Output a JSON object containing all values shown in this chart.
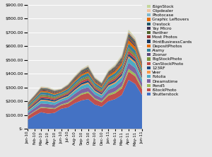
{
  "months": [
    "Jan-10",
    "Feb-10",
    "Mar-10",
    "Apr-10",
    "May-10",
    "Jun-10",
    "Jul-10",
    "Aug-10",
    "Sep-10",
    "Oct-10",
    "Nov-10",
    "Dec-10",
    "Jan-11",
    "Feb-11",
    "Mar-11",
    "Apr-11",
    "May-11",
    "Jun-11"
  ],
  "series": {
    "Shutterstock": [
      65,
      95,
      120,
      110,
      115,
      145,
      155,
      185,
      205,
      215,
      175,
      160,
      200,
      215,
      245,
      355,
      325,
      245
    ],
    "iStockPhoto": [
      25,
      28,
      32,
      38,
      28,
      25,
      28,
      32,
      42,
      45,
      38,
      32,
      40,
      42,
      48,
      60,
      55,
      42
    ],
    "Pond5": [
      4,
      4,
      6,
      6,
      6,
      6,
      8,
      8,
      10,
      10,
      8,
      8,
      12,
      14,
      16,
      20,
      18,
      14
    ],
    "Dreamstime": [
      18,
      22,
      26,
      26,
      24,
      22,
      24,
      28,
      30,
      32,
      27,
      24,
      30,
      32,
      36,
      44,
      42,
      32
    ],
    "Fotolia": [
      14,
      16,
      20,
      20,
      18,
      16,
      18,
      22,
      25,
      26,
      22,
      19,
      24,
      26,
      30,
      36,
      34,
      27
    ],
    "Veer": [
      5,
      6,
      7,
      7,
      6,
      6,
      6,
      7,
      8,
      9,
      7,
      6,
      8,
      9,
      10,
      12,
      11,
      9
    ],
    "123RF": [
      7,
      9,
      11,
      11,
      10,
      9,
      10,
      12,
      13,
      14,
      11,
      10,
      12,
      13,
      15,
      18,
      17,
      13
    ],
    "CanStockPhoto": [
      9,
      11,
      13,
      13,
      12,
      10,
      12,
      14,
      15,
      16,
      13,
      12,
      14,
      16,
      18,
      22,
      20,
      16
    ],
    "BigStockPhoto": [
      7,
      9,
      11,
      11,
      10,
      9,
      10,
      12,
      13,
      14,
      11,
      10,
      12,
      13,
      15,
      18,
      17,
      13
    ],
    "Zoonar": [
      3,
      3,
      4,
      4,
      4,
      3,
      4,
      4,
      5,
      5,
      4,
      4,
      5,
      5,
      6,
      7,
      6,
      5
    ],
    "Alamy": [
      11,
      13,
      16,
      16,
      14,
      12,
      14,
      16,
      18,
      19,
      16,
      14,
      17,
      19,
      22,
      26,
      24,
      19
    ],
    "DepositPhotos": [
      4,
      7,
      9,
      9,
      8,
      7,
      8,
      10,
      12,
      13,
      10,
      9,
      13,
      16,
      20,
      27,
      25,
      19
    ],
    "PrintBusinessCards": [
      3,
      3,
      4,
      4,
      4,
      3,
      4,
      5,
      5,
      6,
      5,
      4,
      5,
      6,
      7,
      9,
      8,
      6
    ],
    "Most Photos": [
      3,
      4,
      5,
      5,
      5,
      4,
      5,
      6,
      6,
      7,
      5,
      5,
      6,
      7,
      8,
      10,
      9,
      7
    ],
    "Panther": [
      3,
      3,
      4,
      4,
      4,
      3,
      4,
      5,
      5,
      6,
      5,
      4,
      5,
      6,
      7,
      9,
      8,
      6
    ],
    "Yay Micro": [
      2,
      2,
      3,
      3,
      3,
      2,
      3,
      3,
      4,
      4,
      3,
      3,
      4,
      5,
      6,
      8,
      7,
      5
    ],
    "Crestock": [
      2,
      3,
      4,
      4,
      3,
      3,
      3,
      4,
      5,
      6,
      4,
      4,
      5,
      6,
      7,
      9,
      8,
      6
    ],
    "Graphic Leftovers": [
      2,
      2,
      3,
      3,
      3,
      2,
      3,
      3,
      4,
      4,
      3,
      3,
      4,
      5,
      6,
      8,
      7,
      5
    ],
    "Photocase": [
      2,
      2,
      3,
      3,
      3,
      2,
      3,
      3,
      4,
      4,
      3,
      3,
      4,
      5,
      6,
      8,
      7,
      5
    ],
    "Clipdealer": [
      1,
      2,
      3,
      3,
      2,
      2,
      2,
      3,
      3,
      4,
      3,
      2,
      3,
      4,
      5,
      7,
      6,
      4
    ],
    "iSignStock": [
      1,
      1,
      2,
      2,
      2,
      1,
      2,
      2,
      2,
      3,
      2,
      2,
      3,
      3,
      4,
      6,
      5,
      4
    ]
  },
  "colors": {
    "Shutterstock": "#4472C4",
    "iStockPhoto": "#C0504D",
    "Pond5": "#9BBB59",
    "Dreamstime": "#8064A2",
    "Fotolia": "#4BACC6",
    "Veer": "#F79646",
    "123RF": "#1F497D",
    "CanStockPhoto": "#BE4B48",
    "BigStockPhoto": "#76923C",
    "Zoonar": "#5F497A",
    "Alamy": "#31849B",
    "DepositPhotos": "#E36C09",
    "PrintBusinessCards": "#17375E",
    "Most Photos": "#953735",
    "Panther": "#4F6228",
    "Yay Micro": "#3F3151",
    "Crestock": "#215868",
    "Graphic Leftovers": "#E26B0A",
    "Photocase": "#7DB9D0",
    "Clipdealer": "#F2C4A0",
    "iSignStock": "#C4D79B"
  },
  "ylim_max": 900,
  "bg_color": "#DCDCDC",
  "plot_bg": "#DCDCDC"
}
